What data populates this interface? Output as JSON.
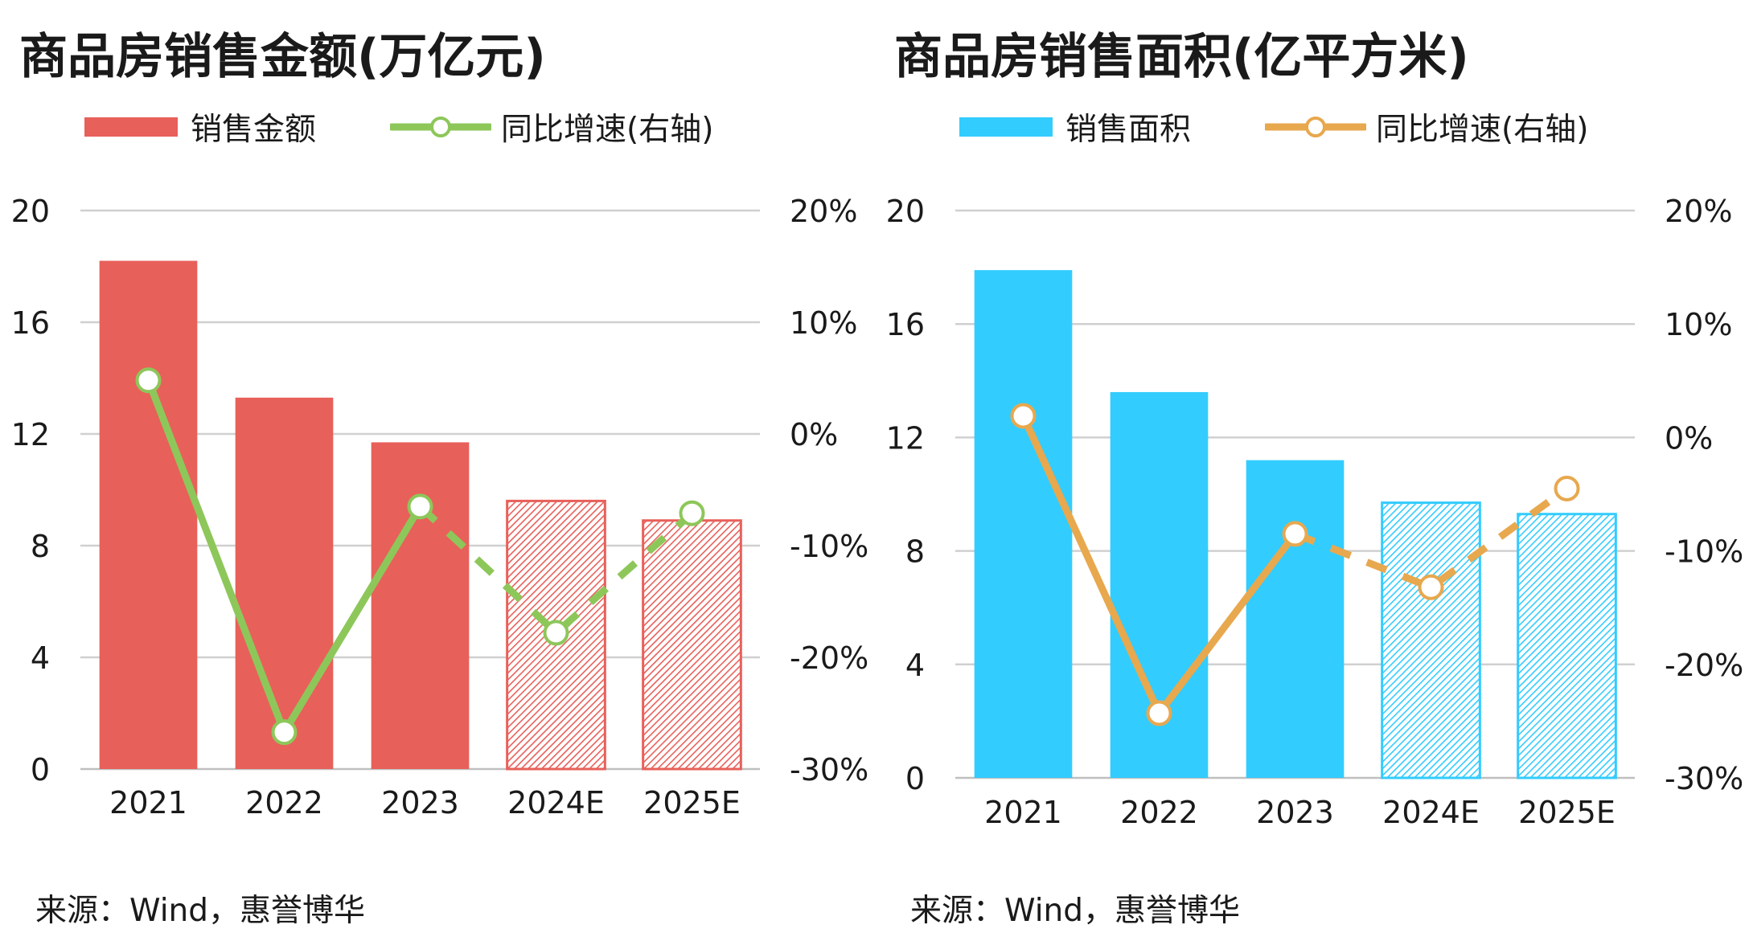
{
  "charts": [
    {
      "title": "商品房销售金额(万亿元)",
      "source": "来源：Wind，惠誉博华",
      "bar_color": "#e8605a",
      "line_color": "#8dc75a",
      "legend": {
        "bar": "销售金额",
        "line": "同比增速(右轴)"
      }
    },
    {
      "title": "商品房销售面积(亿平方米)",
      "source": "来源：Wind，惠誉博华",
      "bar_color": "#33ccff",
      "line_color": "#e8a84e",
      "legend": {
        "bar": "销售面积",
        "line": "同比增速(右轴)"
      }
    }
  ],
  "chart_data": [
    {
      "type": "bar",
      "title": "商品房销售金额(万亿元)",
      "categories": [
        "2021",
        "2022",
        "2023",
        "2024E",
        "2025E"
      ],
      "estimated_categories": [
        "2024E",
        "2025E"
      ],
      "series": [
        {
          "name": "销售金额",
          "axis": "left",
          "values": [
            18.2,
            13.3,
            11.7,
            9.6,
            8.9
          ]
        },
        {
          "name": "同比增速(右轴)",
          "type": "line",
          "axis": "right",
          "values": [
            4.8,
            -26.7,
            -6.5,
            -17.8,
            -7.1
          ],
          "dashed_from": "2023"
        }
      ],
      "y_left": {
        "ylim": [
          0,
          20
        ],
        "ticks": [
          0,
          4,
          8,
          12,
          16,
          20
        ]
      },
      "y_right": {
        "ylim": [
          -30,
          20
        ],
        "ticks": [
          -30,
          -20,
          -10,
          0,
          10,
          20
        ],
        "tick_labels": [
          "-30%",
          "-20%",
          "-10%",
          "0%",
          "10%",
          "20%"
        ]
      },
      "grid": true,
      "legend_position": "top"
    },
    {
      "type": "bar",
      "title": "商品房销售面积(亿平方米)",
      "categories": [
        "2021",
        "2022",
        "2023",
        "2024E",
        "2025E"
      ],
      "estimated_categories": [
        "2024E",
        "2025E"
      ],
      "series": [
        {
          "name": "销售面积",
          "axis": "left",
          "values": [
            17.9,
            13.6,
            11.2,
            9.7,
            9.3
          ]
        },
        {
          "name": "同比增速(右轴)",
          "type": "line",
          "axis": "right",
          "values": [
            1.9,
            -24.3,
            -8.5,
            -13.2,
            -4.5
          ],
          "dashed_from": "2023"
        }
      ],
      "y_left": {
        "ylim": [
          0,
          20
        ],
        "ticks": [
          0,
          4,
          8,
          12,
          16,
          20
        ]
      },
      "y_right": {
        "ylim": [
          -30,
          20
        ],
        "ticks": [
          -30,
          -20,
          -10,
          0,
          10,
          20
        ],
        "tick_labels": [
          "-30%",
          "-20%",
          "-10%",
          "0%",
          "10%",
          "20%"
        ]
      },
      "grid": true,
      "legend_position": "top"
    }
  ]
}
